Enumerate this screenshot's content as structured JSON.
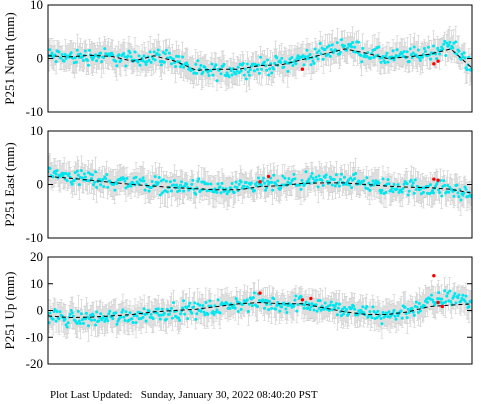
{
  "footer": {
    "label": "Plot Last Updated:",
    "timestamp": "Sunday, January 30, 2022 08:40:20 PST"
  },
  "colors": {
    "points": "#00e5ee",
    "error_bars": "#c8c8c8",
    "outliers": "#ff0000",
    "model": "#000000",
    "frame": "#000000"
  },
  "chart_data": [
    {
      "type": "scatter",
      "title": "",
      "xlabel": "",
      "ylabel": "P251 North (mm)",
      "ylim": [
        -10,
        10
      ],
      "yticks": [
        -10,
        0,
        10
      ],
      "grid": false,
      "legend": "none",
      "x": [
        0,
        0.05,
        0.1,
        0.15,
        0.2,
        0.25,
        0.3,
        0.35,
        0.4,
        0.45,
        0.5,
        0.55,
        0.6,
        0.65,
        0.7,
        0.75,
        0.8,
        0.85,
        0.9,
        0.95,
        1.0
      ],
      "series": [
        {
          "role": "observations",
          "values": [
            0.5,
            0.2,
            0.5,
            0.3,
            -0.2,
            0.5,
            0.0,
            -2.5,
            -2.5,
            -2.0,
            -1.5,
            -1.0,
            0.0,
            1.0,
            2.5,
            1.0,
            0.0,
            0.5,
            1.0,
            2.5,
            -1.5
          ]
        },
        {
          "role": "model",
          "values": [
            0.5,
            0.3,
            0.6,
            0.4,
            -0.5,
            0.5,
            -0.5,
            -2.2,
            -2.0,
            -2.0,
            -1.3,
            -1.2,
            -0.2,
            0.8,
            1.8,
            1.0,
            0.0,
            0.3,
            0.8,
            1.8,
            -1.8
          ]
        },
        {
          "role": "outliers",
          "points": [
            [
              0.6,
              -2.0
            ],
            [
              0.91,
              -1.0
            ],
            [
              0.92,
              -0.5
            ]
          ]
        }
      ]
    },
    {
      "type": "scatter",
      "title": "",
      "xlabel": "",
      "ylabel": "P251 East (mm)",
      "ylim": [
        -10,
        10
      ],
      "yticks": [
        -10,
        0,
        10
      ],
      "grid": false,
      "legend": "none",
      "x": [
        0,
        0.05,
        0.1,
        0.15,
        0.2,
        0.25,
        0.3,
        0.35,
        0.4,
        0.45,
        0.5,
        0.55,
        0.6,
        0.65,
        0.7,
        0.75,
        0.8,
        0.85,
        0.9,
        0.95,
        1.0
      ],
      "series": [
        {
          "role": "observations",
          "values": [
            2.0,
            1.5,
            1.0,
            0.5,
            0.5,
            0.0,
            -0.5,
            -0.5,
            -1.0,
            -1.0,
            0.0,
            0.0,
            0.5,
            0.5,
            1.0,
            0.0,
            -0.5,
            -0.5,
            -0.5,
            -1.0,
            -2.0
          ]
        },
        {
          "role": "model",
          "values": [
            1.5,
            1.2,
            0.8,
            0.4,
            0.0,
            -0.3,
            -0.6,
            -0.8,
            -1.0,
            -1.0,
            -0.4,
            -0.2,
            0.2,
            0.3,
            0.3,
            0.0,
            -0.3,
            -0.5,
            -0.6,
            -0.9,
            -1.6
          ]
        },
        {
          "role": "outliers",
          "points": [
            [
              0.5,
              0.5
            ],
            [
              0.52,
              1.5
            ],
            [
              0.91,
              1.0
            ],
            [
              0.92,
              0.8
            ]
          ]
        }
      ]
    },
    {
      "type": "scatter",
      "title": "",
      "xlabel": "",
      "ylabel": "P251 Up (mm)",
      "ylim": [
        -20,
        20
      ],
      "yticks": [
        -20,
        -10,
        0,
        10,
        20
      ],
      "grid": false,
      "legend": "none",
      "x": [
        0,
        0.05,
        0.1,
        0.15,
        0.2,
        0.25,
        0.3,
        0.35,
        0.4,
        0.45,
        0.5,
        0.55,
        0.6,
        0.65,
        0.7,
        0.75,
        0.8,
        0.85,
        0.9,
        0.95,
        1.0
      ],
      "series": [
        {
          "role": "observations",
          "values": [
            -2.0,
            -3.0,
            -3.0,
            -2.5,
            -2.0,
            -1.0,
            0.0,
            0.0,
            1.0,
            2.5,
            3.0,
            2.0,
            3.0,
            1.5,
            0.0,
            -1.0,
            -2.0,
            0.0,
            3.0,
            5.0,
            3.0
          ]
        },
        {
          "role": "model",
          "values": [
            -2.0,
            -2.6,
            -2.5,
            -2.0,
            -1.5,
            -0.5,
            0.0,
            0.5,
            1.5,
            2.5,
            3.0,
            2.5,
            2.5,
            1.0,
            -0.5,
            -1.5,
            -1.5,
            -0.5,
            1.5,
            2.0,
            2.5
          ]
        },
        {
          "role": "outliers",
          "points": [
            [
              0.5,
              6.5
            ],
            [
              0.6,
              4.0
            ],
            [
              0.62,
              4.5
            ],
            [
              0.91,
              13.0
            ],
            [
              0.92,
              3.0
            ],
            [
              0.93,
              1.5
            ]
          ]
        }
      ]
    }
  ]
}
